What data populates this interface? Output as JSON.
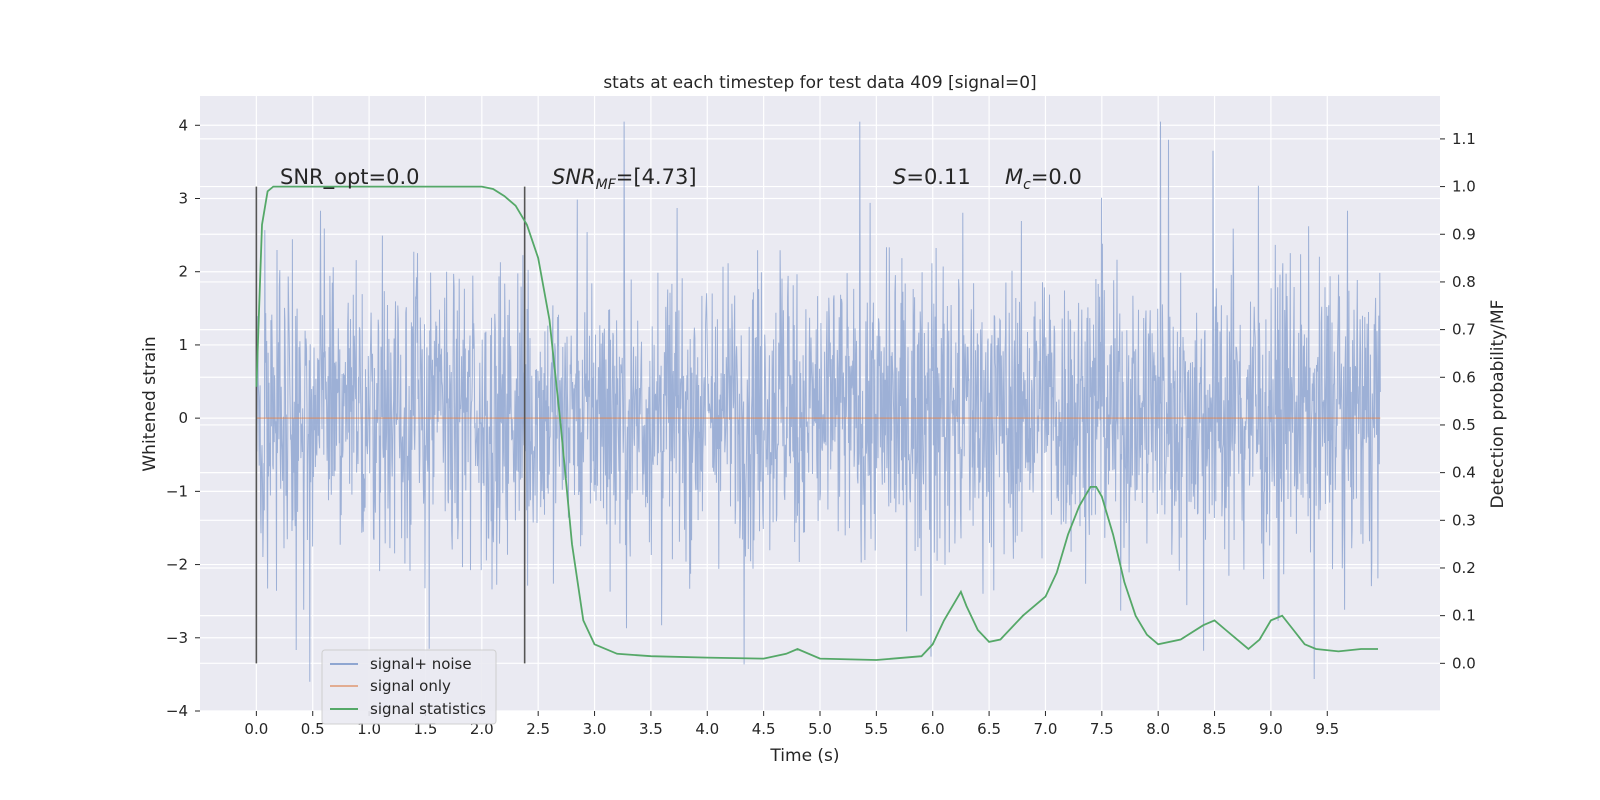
{
  "chart_data": {
    "type": "line",
    "title": "stats at each timestep for test data 409 [signal=0]",
    "xlabel": "Time (s)",
    "ylabel": "Whitened strain",
    "ylabel_right": "Detection probability/MF",
    "xlim": [
      -0.5,
      10.5
    ],
    "ylim": [
      -4,
      4.4
    ],
    "ylim_right": [
      -0.1,
      1.19
    ],
    "xticks": [
      "0.0",
      "0.5",
      "1.0",
      "1.5",
      "2.0",
      "2.5",
      "3.0",
      "3.5",
      "4.0",
      "4.5",
      "5.0",
      "5.5",
      "6.0",
      "6.5",
      "7.0",
      "7.5",
      "8.0",
      "8.5",
      "9.0",
      "9.5"
    ],
    "yticks_left": [
      "4",
      "3",
      "2",
      "1",
      "0",
      "−1",
      "−2",
      "−3",
      "−4"
    ],
    "yticks_right": [
      "1.1",
      "1.0",
      "0.9",
      "0.8",
      "0.7",
      "0.6",
      "0.5",
      "0.4",
      "0.3",
      "0.2",
      "0.1",
      "0.0"
    ],
    "grid": true,
    "legend_placement": "lower-left",
    "annotations": {
      "snr_opt": "SNR_opt=0.0",
      "snr_mf_label": "SNR",
      "snr_mf_sub": "MF",
      "snr_mf_value": "=[4.73]",
      "s_label": "S",
      "s_value": "=0.11",
      "mc_label": "M",
      "mc_sub": "c",
      "mc_value": "=0.0"
    },
    "vertical_markers_x": [
      0.0,
      2.38
    ],
    "series": [
      {
        "name": "signal+ noise",
        "color": "#8fa6d1",
        "axis": "left",
        "description_values": "noise band, typical range",
        "band_core": [
          -1.2,
          1.4
        ],
        "band_extent": [
          -3.6,
          4.05
        ],
        "x_range": [
          0.0,
          9.97
        ]
      },
      {
        "name": "signal only",
        "color": "#dd8452",
        "axis": "left",
        "x": [
          0.0,
          9.97
        ],
        "y": [
          0,
          0
        ]
      },
      {
        "name": "signal statistics",
        "color": "#55a868",
        "axis": "right",
        "x": [
          0.0,
          0.05,
          0.1,
          0.15,
          0.2,
          0.3,
          0.5,
          1.0,
          1.5,
          2.0,
          2.1,
          2.2,
          2.3,
          2.4,
          2.5,
          2.6,
          2.7,
          2.8,
          2.9,
          3.0,
          3.2,
          3.5,
          4.0,
          4.5,
          4.7,
          4.8,
          5.0,
          5.5,
          5.9,
          6.0,
          6.1,
          6.2,
          6.25,
          6.3,
          6.4,
          6.5,
          6.6,
          6.8,
          7.0,
          7.1,
          7.2,
          7.3,
          7.4,
          7.45,
          7.5,
          7.6,
          7.7,
          7.8,
          7.9,
          8.0,
          8.2,
          8.4,
          8.5,
          8.6,
          8.8,
          8.9,
          9.0,
          9.1,
          9.2,
          9.3,
          9.4,
          9.6,
          9.8,
          9.95
        ],
        "y": [
          0.58,
          0.92,
          0.99,
          1.0,
          1.0,
          1.0,
          1.0,
          1.0,
          1.0,
          1.0,
          0.995,
          0.98,
          0.96,
          0.92,
          0.85,
          0.72,
          0.5,
          0.25,
          0.09,
          0.04,
          0.02,
          0.015,
          0.012,
          0.01,
          0.02,
          0.03,
          0.01,
          0.007,
          0.015,
          0.04,
          0.09,
          0.13,
          0.15,
          0.12,
          0.07,
          0.045,
          0.05,
          0.1,
          0.14,
          0.19,
          0.27,
          0.33,
          0.37,
          0.37,
          0.35,
          0.27,
          0.17,
          0.1,
          0.06,
          0.04,
          0.05,
          0.08,
          0.09,
          0.07,
          0.03,
          0.05,
          0.09,
          0.1,
          0.07,
          0.04,
          0.03,
          0.025,
          0.03,
          0.03
        ]
      }
    ]
  }
}
